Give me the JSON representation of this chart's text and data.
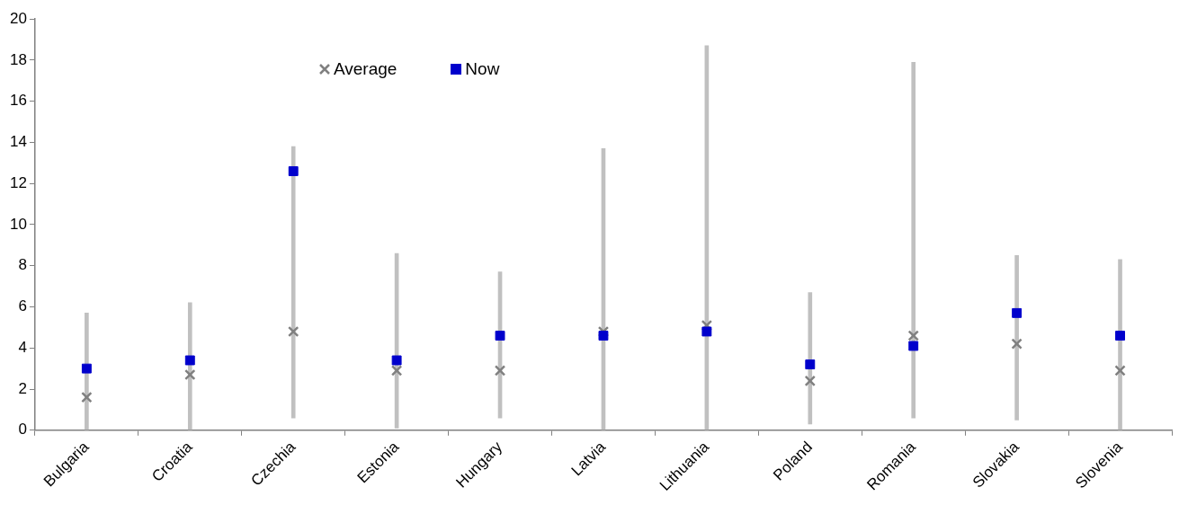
{
  "chart_data": {
    "type": "bar",
    "categories": [
      "Bulgaria",
      "Croatia",
      "Czechia",
      "Estonia",
      "Hungary",
      "Latvia",
      "Lithuania",
      "Poland",
      "Romania",
      "Slovakia",
      "Slovenia"
    ],
    "series": [
      {
        "color": "#c0c0c0",
        "base": [
          0,
          0,
          0.6,
          0.1,
          0.6,
          0,
          0,
          0.3,
          0.6,
          0.5,
          0
        ],
        "values": [
          5.7,
          6.2,
          13.2,
          8.5,
          7.1,
          13.7,
          18.7,
          6.4,
          17.3,
          8.0,
          8.3
        ]
      },
      {
        "type": "scatter",
        "name": "Average",
        "color": "#808080",
        "marker": "cross",
        "values": [
          1.6,
          2.7,
          4.8,
          2.9,
          2.9,
          4.8,
          5.1,
          2.4,
          4.6,
          4.2,
          2.9
        ]
      },
      {
        "type": "scatter",
        "name": "Now",
        "color": "#0000cc",
        "marker": "square",
        "values": [
          3.0,
          3.4,
          12.6,
          3.4,
          4.6,
          4.6,
          4.8,
          3.2,
          4.1,
          5.7,
          4.6
        ]
      }
    ],
    "ylim": [
      0,
      20
    ],
    "yticks": [
      0,
      2,
      4,
      6,
      8,
      10,
      12,
      14,
      16,
      18,
      20
    ],
    "grid": false,
    "legend": "top left"
  }
}
